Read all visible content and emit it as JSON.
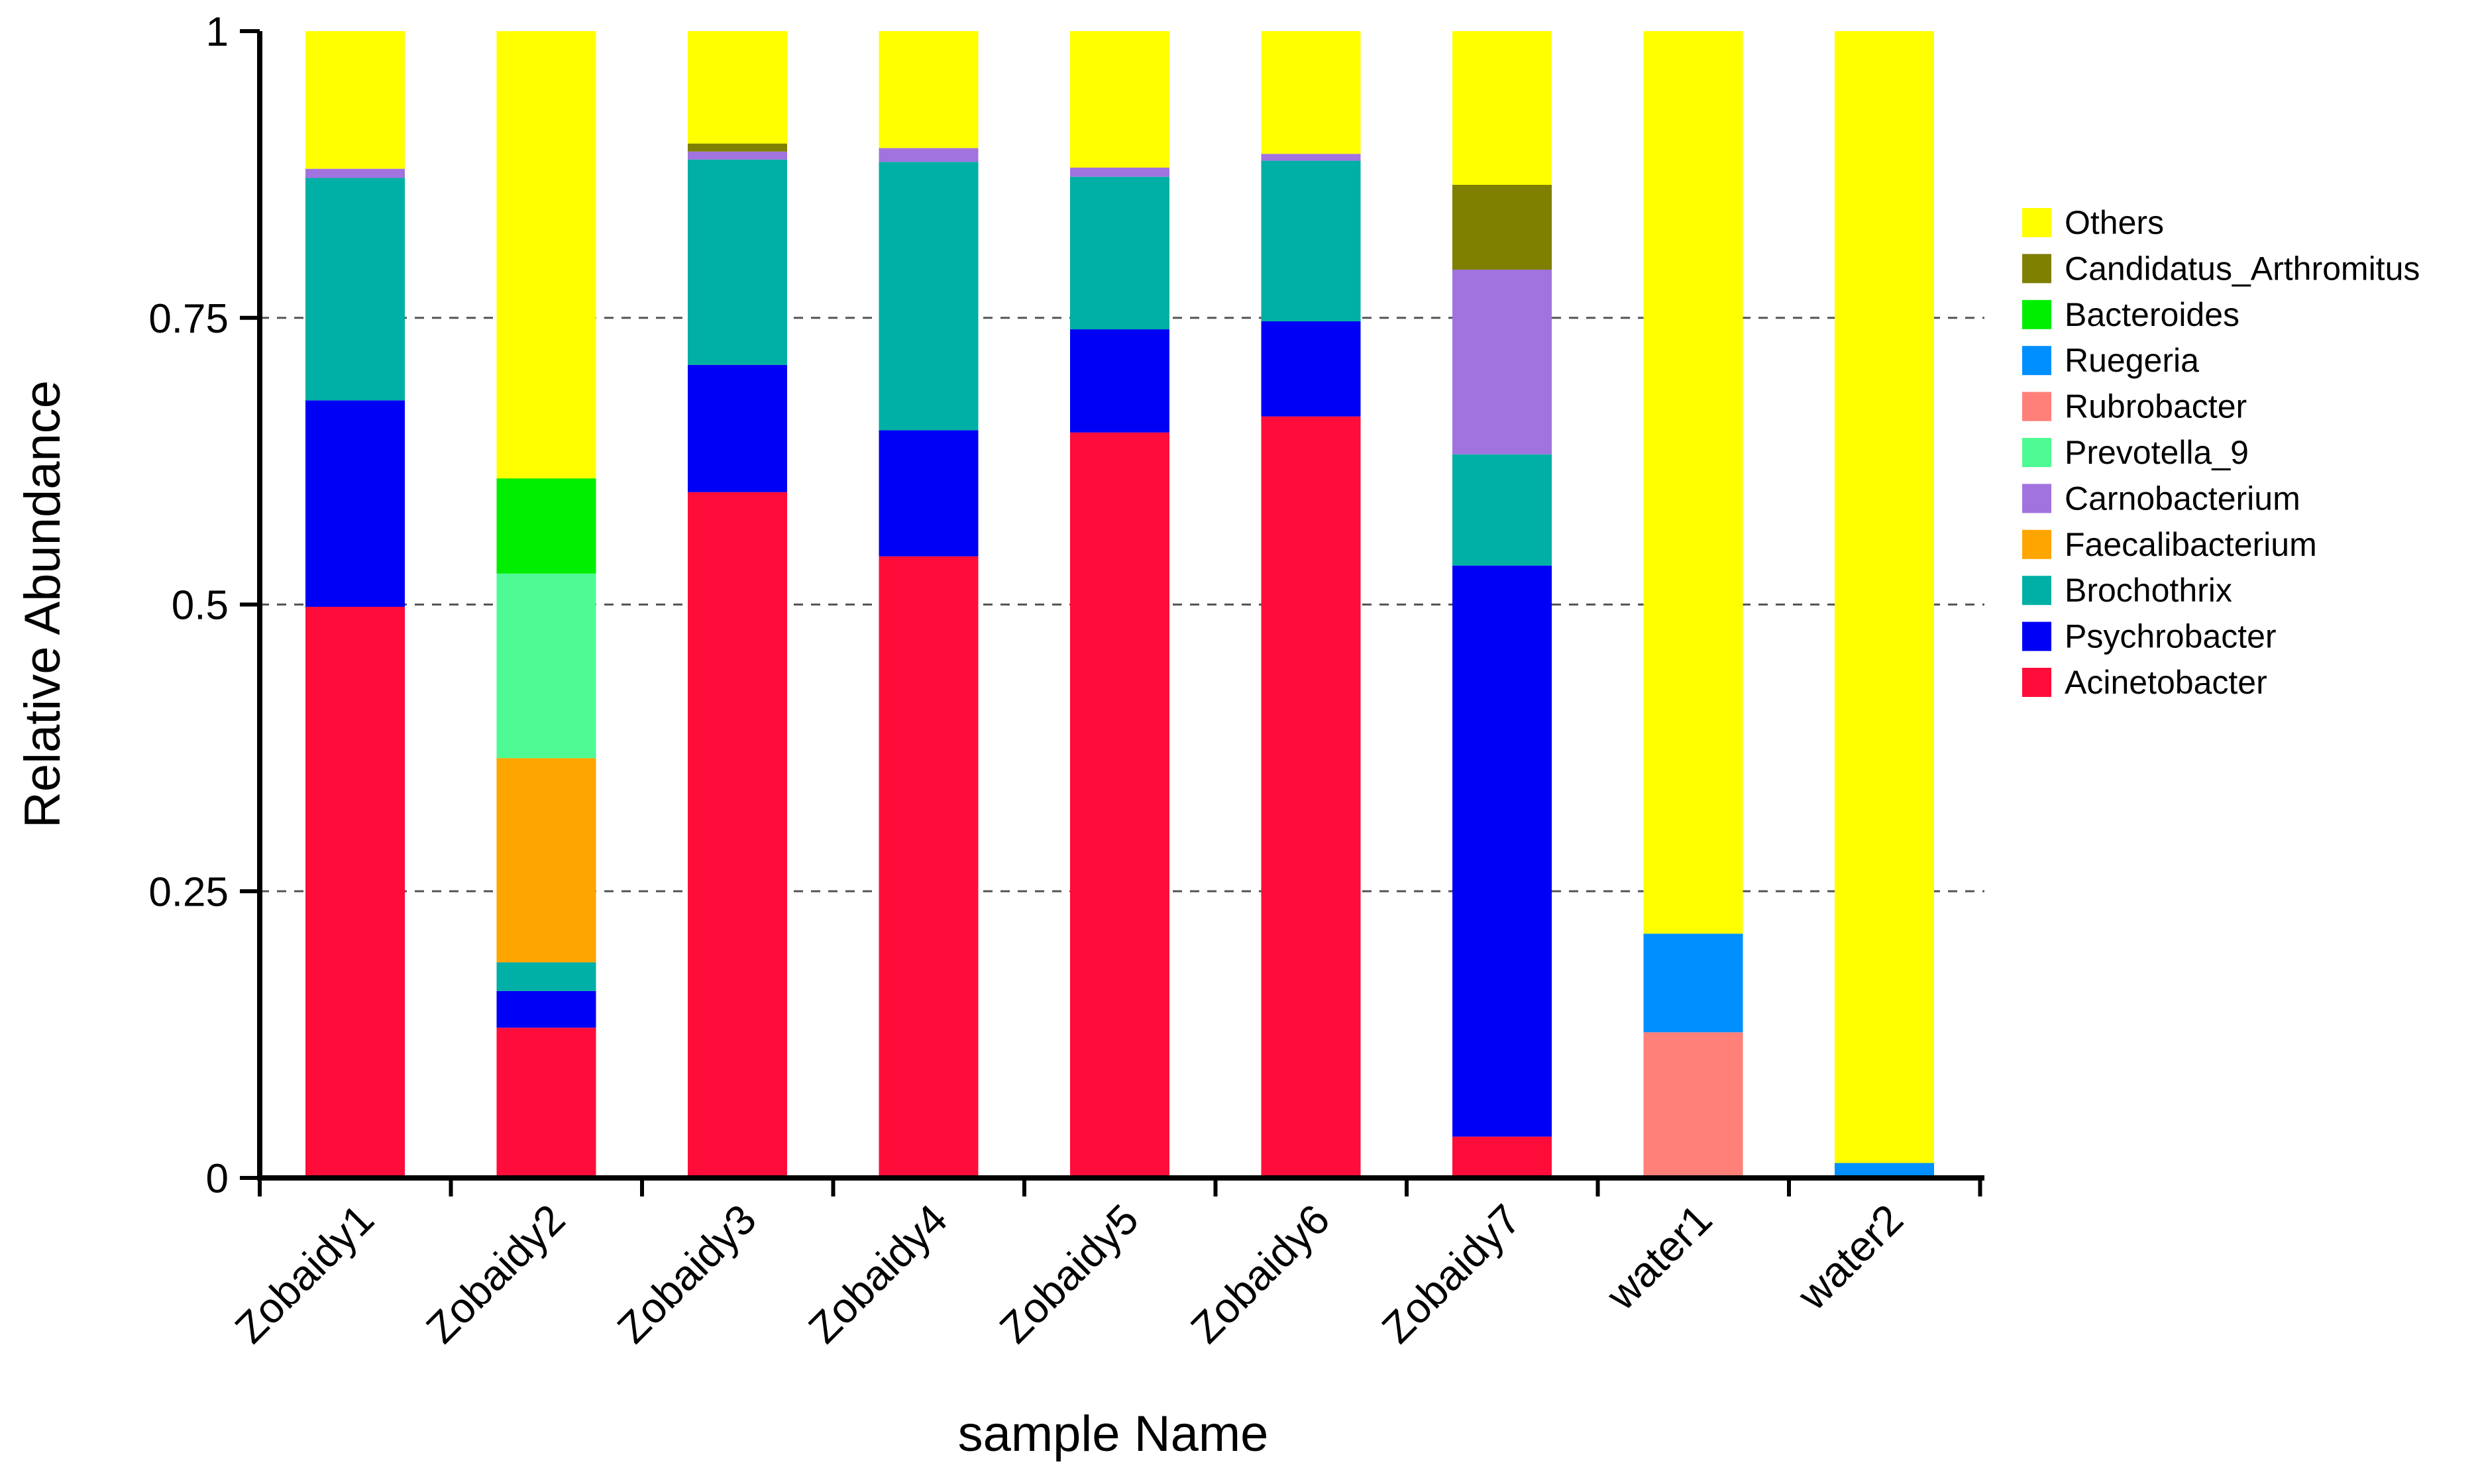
{
  "chart_data": {
    "type": "bar",
    "stacked": true,
    "title": "",
    "xlabel": "sample Name",
    "ylabel": "Relative Abundance",
    "ylim": [
      0,
      1
    ],
    "yticks": [
      0,
      0.25,
      0.5,
      0.75,
      1
    ],
    "ytick_labels": [
      "0",
      "0.25",
      "0.5",
      "0.75",
      "1"
    ],
    "grid": "dashed horizontal at 0.25, 0.5, 0.75",
    "legend_position": "right",
    "categories": [
      "Zobaidy1",
      "Zobaidy2",
      "Zobaidy3",
      "Zobaidy4",
      "Zobaidy5",
      "Zobaidy6",
      "Zobaidy7",
      "water1",
      "water2"
    ],
    "series": [
      {
        "name": "Acinetobacter",
        "color": "#FF0D3A",
        "values": [
          0.498,
          0.131,
          0.598,
          0.542,
          0.65,
          0.664,
          0.036,
          0.0,
          0.0
        ]
      },
      {
        "name": "Psychrobacter",
        "color": "#0000F5",
        "values": [
          0.18,
          0.032,
          0.111,
          0.11,
          0.09,
          0.083,
          0.498,
          0.0,
          0.0
        ]
      },
      {
        "name": "Brochothrix",
        "color": "#00AFA5",
        "values": [
          0.194,
          0.025,
          0.179,
          0.234,
          0.133,
          0.14,
          0.097,
          0.0,
          0.0
        ]
      },
      {
        "name": "Faecalibacterium",
        "color": "#FFA500",
        "values": [
          0.0,
          0.178,
          0.0,
          0.0,
          0.0,
          0.0,
          0.0,
          0.0,
          0.0
        ]
      },
      {
        "name": "Prevotella_9",
        "color": "#4DFA93",
        "values": [
          0.0,
          0.161,
          0.0,
          0.0,
          0.0,
          0.0,
          0.0,
          0.0,
          0.0
        ]
      },
      {
        "name": "Carnobacterium",
        "color": "#A173DF",
        "values": [
          0.008,
          0.0,
          0.007,
          0.012,
          0.008,
          0.006,
          0.161,
          0.0,
          0.0
        ]
      },
      {
        "name": "Rubrobacter",
        "color": "#FF8078",
        "values": [
          0.0,
          0.0,
          0.0,
          0.0,
          0.0,
          0.0,
          0.0,
          0.127,
          0.0
        ]
      },
      {
        "name": "Ruegeria",
        "color": "#008FFF",
        "values": [
          0.0,
          0.0,
          0.0,
          0.0,
          0.0,
          0.0,
          0.0,
          0.086,
          0.013
        ]
      },
      {
        "name": "Bacteroides",
        "color": "#00EE00",
        "values": [
          0.0,
          0.083,
          0.0,
          0.0,
          0.0,
          0.0,
          0.0,
          0.0,
          0.0
        ]
      },
      {
        "name": "Candidatus_Arthromitus",
        "color": "#7F7F00",
        "values": [
          0.0,
          0.0,
          0.007,
          0.0,
          0.0,
          0.0,
          0.074,
          0.0,
          0.0
        ]
      },
      {
        "name": "Others",
        "color": "#FFFF00",
        "values": [
          0.12,
          0.39,
          0.098,
          0.102,
          0.119,
          0.107,
          0.134,
          0.787,
          0.987
        ]
      }
    ],
    "legend_order": [
      "Others",
      "Candidatus_Arthromitus",
      "Bacteroides",
      "Ruegeria",
      "Rubrobacter",
      "Prevotella_9",
      "Carnobacterium",
      "Faecalibacterium",
      "Brochothrix",
      "Psychrobacter",
      "Acinetobacter"
    ]
  }
}
